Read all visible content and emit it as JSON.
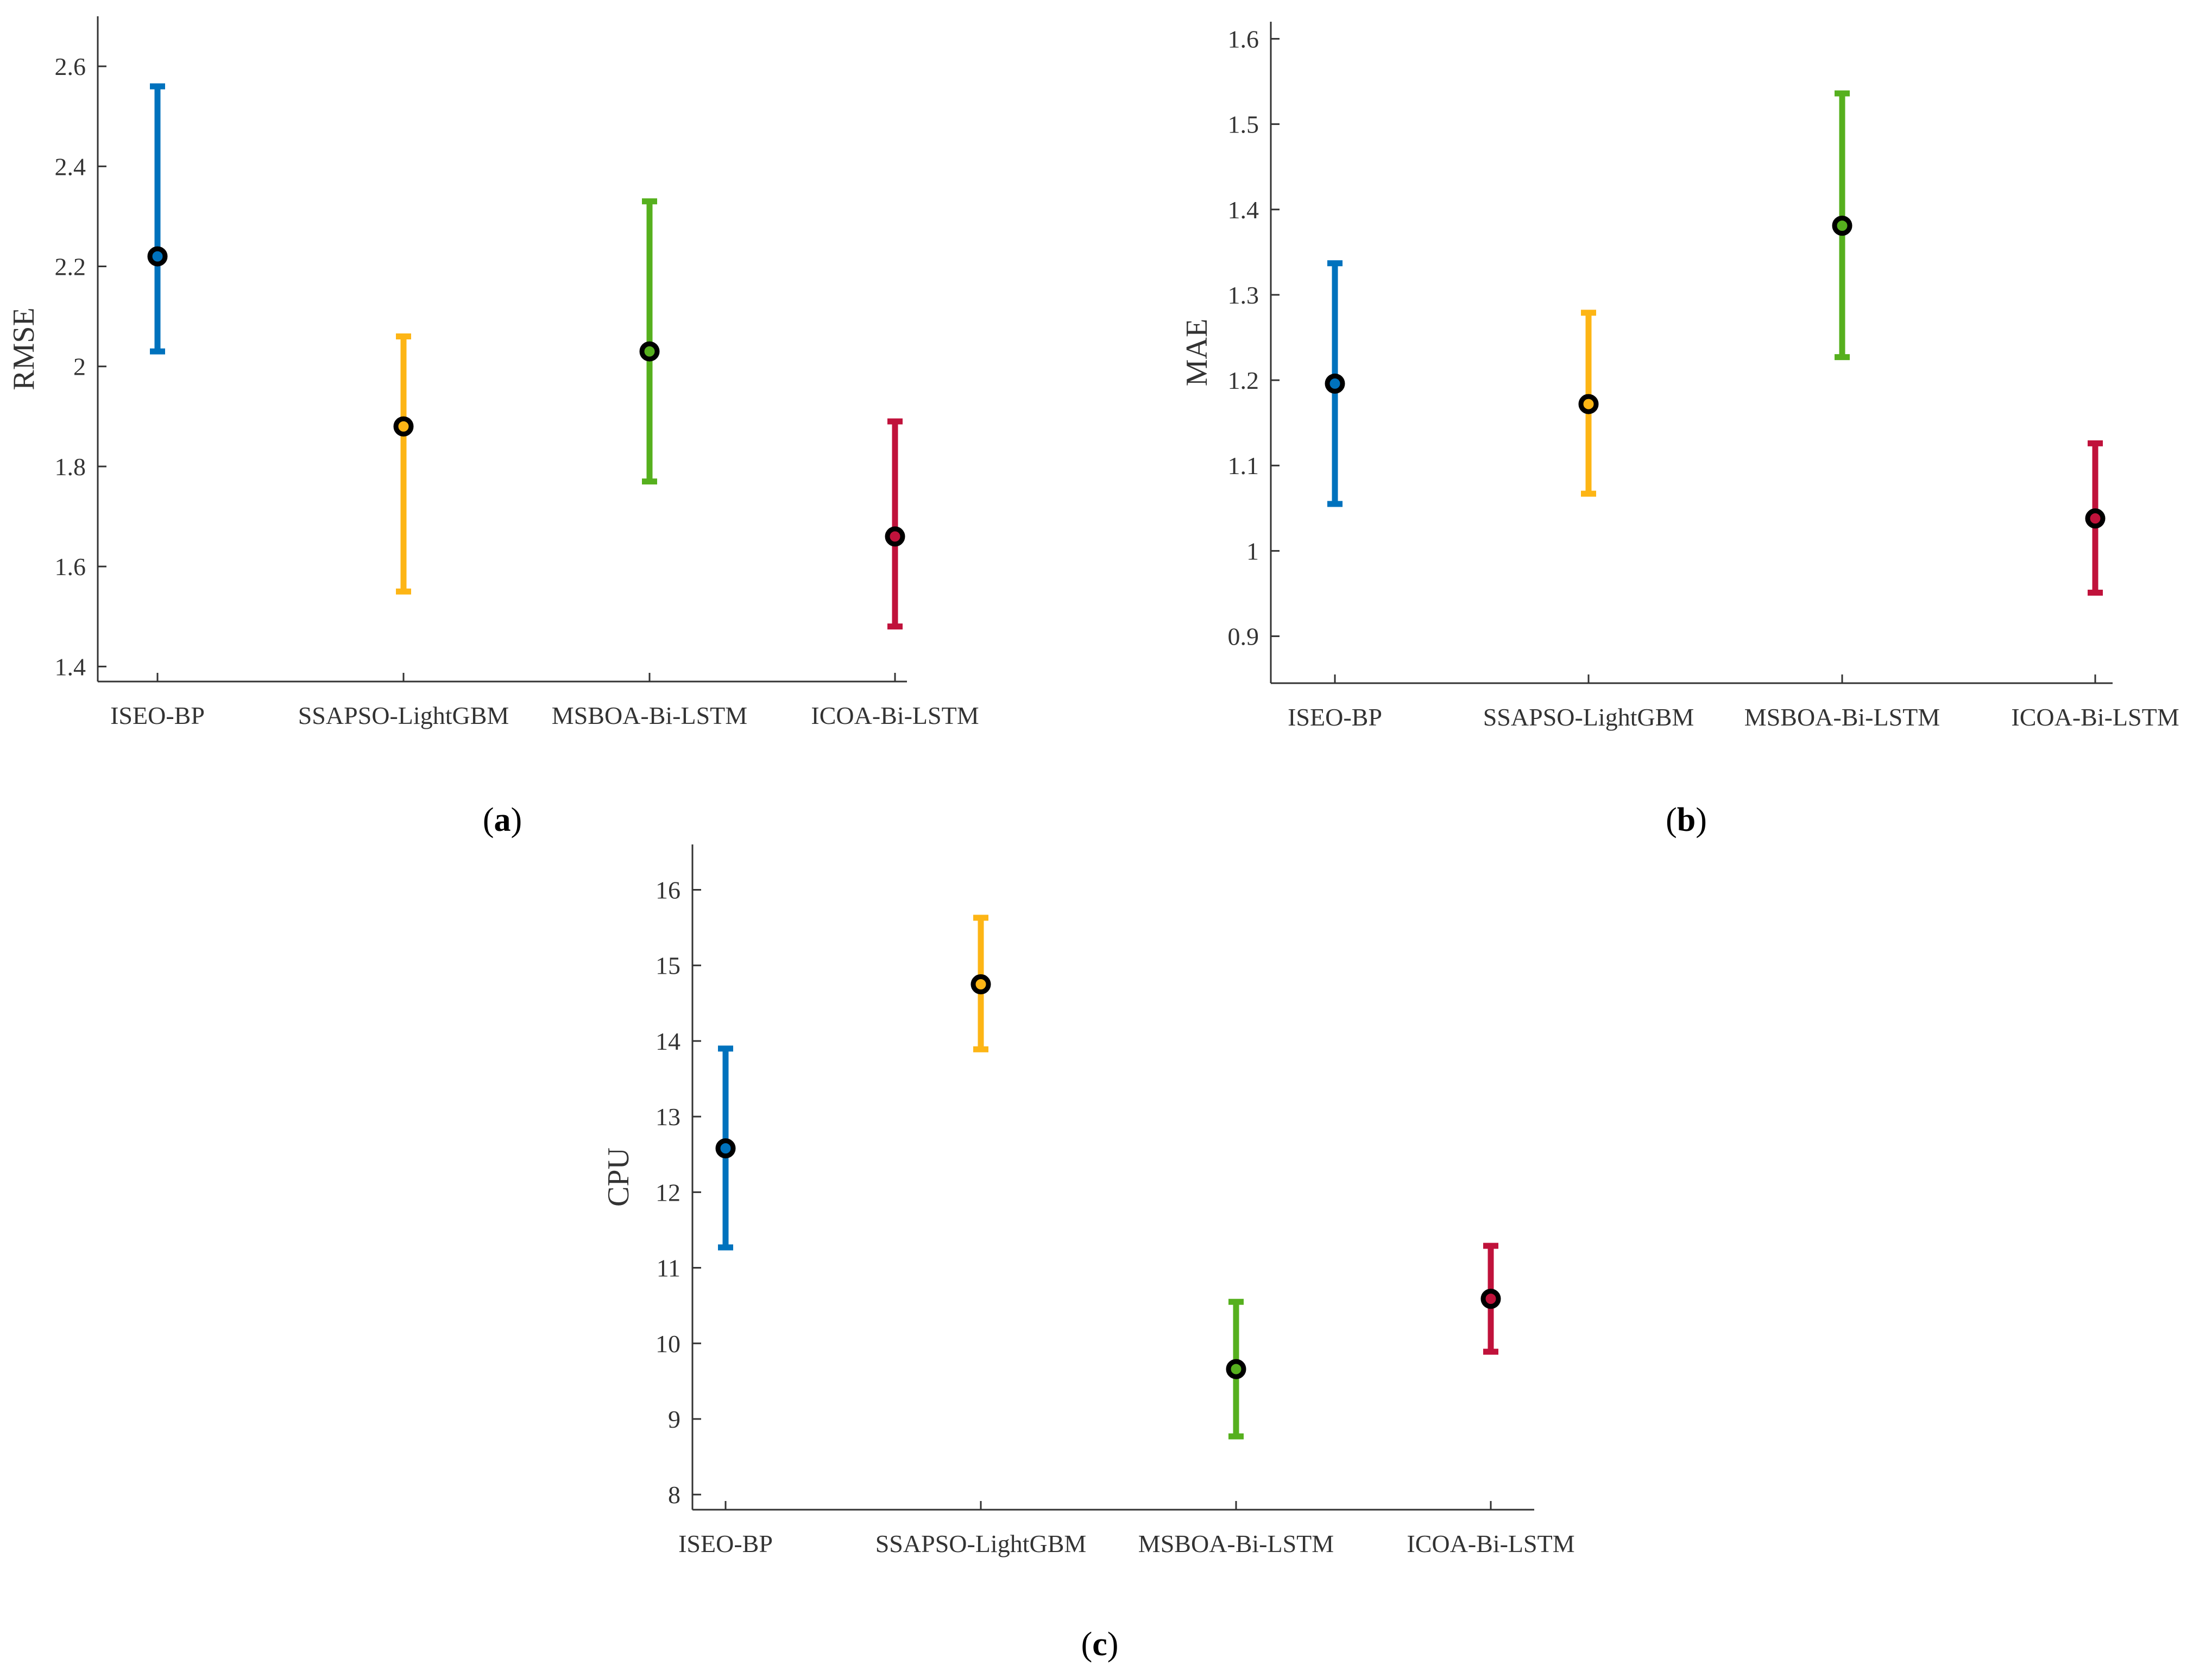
{
  "chart_data": [
    {
      "type": "errorbar",
      "panel": "a",
      "caption": {
        "open": "(",
        "letter": "a",
        "close": ")"
      },
      "title": "",
      "xlabel": "",
      "ylabel": "RMSE",
      "ylim": [
        1.37,
        2.7
      ],
      "yticks": [
        1.4,
        1.6,
        1.8,
        2,
        2.2,
        2.4,
        2.6
      ],
      "ytick_labels": [
        "1.4",
        "1.6",
        "1.8",
        "2",
        "2.2",
        "2.4",
        "2.6"
      ],
      "categories": [
        "ISEO-BP",
        "SSAPSO-LightGBM",
        "MSBOA-Bi-LSTM",
        "ICOA-Bi-LSTM"
      ],
      "means": [
        2.22,
        1.88,
        2.03,
        1.66
      ],
      "lower": [
        2.03,
        1.55,
        1.77,
        1.48
      ],
      "upper": [
        2.56,
        2.06,
        2.33,
        1.89
      ]
    },
    {
      "type": "errorbar",
      "panel": "b",
      "caption": {
        "open": "(",
        "letter": "b",
        "close": ")"
      },
      "title": "",
      "xlabel": "",
      "ylabel": "MAE",
      "ylim": [
        0.845,
        1.62
      ],
      "yticks": [
        0.9,
        1,
        1.1,
        1.2,
        1.3,
        1.4,
        1.5,
        1.6
      ],
      "ytick_labels": [
        "0.9",
        "1",
        "1.1",
        "1.2",
        "1.3",
        "1.4",
        "1.5",
        "1.6"
      ],
      "categories": [
        "ISEO-BP",
        "SSAPSO-LightGBM",
        "MSBOA-Bi-LSTM",
        "ICOA-Bi-LSTM"
      ],
      "means": [
        1.196,
        1.172,
        1.381,
        1.038
      ],
      "lower": [
        1.055,
        1.067,
        1.227,
        0.951
      ],
      "upper": [
        1.337,
        1.279,
        1.536,
        1.126
      ]
    },
    {
      "type": "errorbar",
      "panel": "c",
      "caption": {
        "open": "(",
        "letter": "c",
        "close": ")"
      },
      "title": "",
      "xlabel": "",
      "ylabel": "CPU",
      "ylim": [
        7.8,
        16.6
      ],
      "yticks": [
        8,
        9,
        10,
        11,
        12,
        13,
        14,
        15,
        16
      ],
      "ytick_labels": [
        "8",
        "9",
        "10",
        "11",
        "12",
        "13",
        "14",
        "15",
        "16"
      ],
      "categories": [
        "ISEO-BP",
        "SSAPSO-LightGBM",
        "MSBOA-Bi-LSTM",
        "ICOA-Bi-LSTM"
      ],
      "means": [
        12.58,
        14.75,
        9.66,
        10.59
      ],
      "lower": [
        11.27,
        13.89,
        8.77,
        9.89
      ],
      "upper": [
        13.9,
        15.63,
        10.55,
        11.29
      ]
    }
  ],
  "colors": {
    "series": [
      "#0072BD",
      "#FDB515",
      "#56B01E",
      "#C0123B"
    ],
    "axis": "#333333",
    "marker_edge": "#000000"
  }
}
